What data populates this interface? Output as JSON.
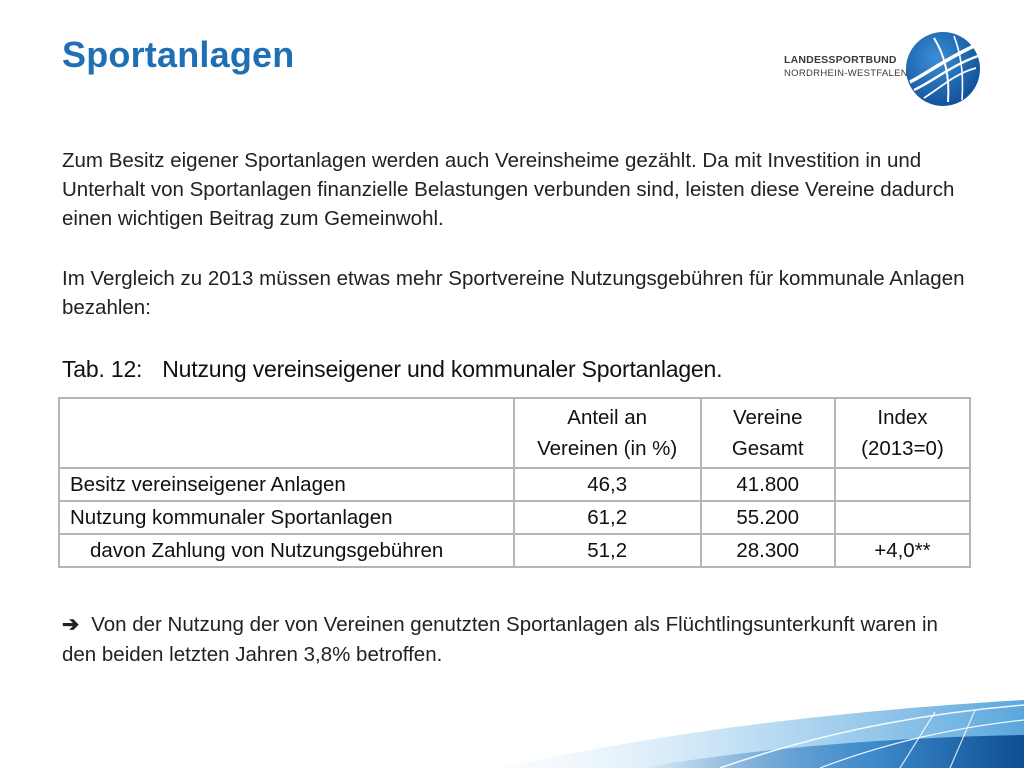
{
  "slide": {
    "title": "Sportanlagen"
  },
  "logo": {
    "line1": "LANDESSPORTBUND",
    "line2": "NORDRHEIN-WESTFALEN"
  },
  "paragraphs": [
    "Zum Besitz eigener Sportanlagen werden auch Vereinsheime gezählt. Da mit Investition in und Unterhalt von Sportanlagen finanzielle Belastungen verbunden sind, leisten diese Vereine dadurch einen wichtigen Beitrag zum Gemeinwohl.",
    "Im Vergleich zu 2013 müssen etwas mehr Sportvereine Nutzungsgebühren für kommunale Anlagen bezahlen:"
  ],
  "table": {
    "caption_number": "Tab. 12:",
    "caption_text": "Nutzung vereinseigener und kommunaler Sportanlagen.",
    "headers": {
      "label": "",
      "anteil": "Anteil an Vereinen (in %)",
      "vereine": "Vereine Gesamt",
      "index": "Index (2013=0)"
    },
    "rows": [
      {
        "label": "Besitz vereinseigener Anlagen",
        "anteil": "46,3",
        "vereine": "41.800",
        "index": ""
      },
      {
        "label": "Nutzung kommunaler Sportanlagen",
        "anteil": "61,2",
        "vereine": "55.200",
        "index": ""
      },
      {
        "label": "davon Zahlung von Nutzungsgebühren",
        "anteil": "51,2",
        "vereine": "28.300",
        "index": "+4,0**"
      }
    ]
  },
  "conclusion": {
    "arrow": "➔",
    "text": "Von der Nutzung der von Vereinen genutzten Sportanlagen als Flüchtlingsunterkunft waren in den beiden letzten Jahren 3,8% betroffen."
  },
  "colors": {
    "title": "#1f6fb5",
    "brand_blue": "#1b5fa8",
    "wave_light": "#cfe6f6",
    "table_border": "#b5b5b5"
  }
}
